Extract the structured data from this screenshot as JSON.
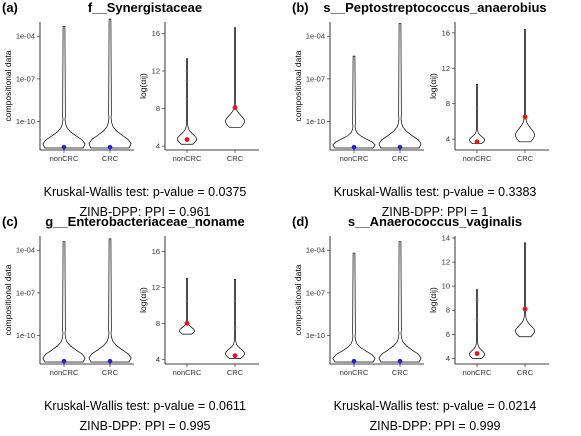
{
  "figure": {
    "categories": [
      "nonCRC",
      "CRC"
    ],
    "left_ylabel": "compositional data",
    "right_ylabel": "log(αij)",
    "point_colors": {
      "compositional": "#1f1fd6",
      "log": "#e8141c"
    }
  },
  "chart_data": [
    {
      "type": "violin",
      "letter": "(a)",
      "title": "f__Synergistaceae",
      "kw_text": "Kruskal-Wallis test: p-value = 0.0375",
      "zinb_text": "ZINB-DPP: PPI = 0.961",
      "left": {
        "ylabel": "compositional data",
        "yscale": "log",
        "yticks": [
          "1e-04",
          "1e-07",
          "1e-10"
        ],
        "tick_values": [
          -4,
          -7,
          -10
        ],
        "ylim": [
          -12,
          -3
        ],
        "medians": [
          -11.8,
          -11.8
        ],
        "violins": [
          {
            "category": "nonCRC",
            "top": -3.3,
            "shape": "bottom-heavy"
          },
          {
            "category": "CRC",
            "top": -2.8,
            "shape": "bottom-heavy"
          }
        ]
      },
      "right": {
        "ylabel": "log(αij)",
        "yticks": [
          "4",
          "8",
          "12",
          "16"
        ],
        "tick_values": [
          4,
          8,
          12,
          16
        ],
        "ylim": [
          3.8,
          17
        ],
        "means": [
          4.7,
          8.1
        ],
        "groups": [
          {
            "category": "nonCRC",
            "min": 4.2,
            "max": 13.3,
            "outliers": [
              11,
              9,
              12
            ]
          },
          {
            "category": "CRC",
            "min": 6,
            "max": 16.6,
            "outliers": []
          }
        ]
      }
    },
    {
      "type": "violin",
      "letter": "(b)",
      "title": "s__Peptostreptococcus_anaerobius",
      "kw_text": "Kruskal-Wallis test: p-value = 0.3383",
      "zinb_text": "ZINB-DPP: PPI = 1",
      "left": {
        "ylabel": "compositional data",
        "yscale": "log",
        "yticks": [
          "1e-04",
          "1e-07",
          "1e-10"
        ],
        "tick_values": [
          -4,
          -7,
          -10
        ],
        "ylim": [
          -12,
          -3
        ],
        "medians": [
          -11.8,
          -11.8
        ],
        "violins": [
          {
            "category": "nonCRC",
            "top": -5.4,
            "shape": "bottom-heavy"
          },
          {
            "category": "CRC",
            "top": -3.1,
            "shape": "bottom-heavy"
          }
        ]
      },
      "right": {
        "ylabel": "log(αij)",
        "yticks": [
          "4",
          "8",
          "12",
          "16"
        ],
        "tick_values": [
          4,
          8,
          12,
          16
        ],
        "ylim": [
          3,
          17
        ],
        "means": [
          3.7,
          6.5
        ],
        "groups": [
          {
            "category": "nonCRC",
            "min": 3.5,
            "max": 10.2,
            "outliers": [
              7.5
            ]
          },
          {
            "category": "CRC",
            "min": 3.7,
            "max": 16.4,
            "outliers": []
          }
        ]
      }
    },
    {
      "type": "violin",
      "letter": "(c)",
      "title": "g__Enterobacteriaceae_noname",
      "kw_text": "Kruskal-Wallis test: p-value = 0.0611",
      "zinb_text": "ZINB-DPP: PPI = 0.995",
      "left": {
        "ylabel": "compositional data",
        "yscale": "log",
        "yticks": [
          "1e-04",
          "1e-07",
          "1e-10"
        ],
        "tick_values": [
          -4,
          -7,
          -10
        ],
        "ylim": [
          -12,
          -3
        ],
        "medians": [
          -11.8,
          -11.8
        ],
        "violins": [
          {
            "category": "nonCRC",
            "top": -3.4,
            "shape": "bottom-heavy"
          },
          {
            "category": "CRC",
            "top": -3.2,
            "shape": "bottom-heavy"
          }
        ]
      },
      "right": {
        "ylabel": "log(αij)",
        "yticks": [
          "4",
          "8",
          "12",
          "16"
        ],
        "tick_values": [
          4,
          8,
          12,
          16
        ],
        "ylim": [
          3.7,
          17.5
        ],
        "means": [
          8,
          4.4
        ],
        "groups": [
          {
            "category": "nonCRC",
            "min": 6.8,
            "max": 13,
            "outliers": [
              10.5
            ]
          },
          {
            "category": "CRC",
            "min": 4.1,
            "max": 12.9,
            "outliers": [
              7.5,
              10.5
            ]
          }
        ]
      }
    },
    {
      "type": "violin",
      "letter": "(d)",
      "title": "s__Anaerococcus_vaginalis",
      "kw_text": "Kruskal-Wallis test: p-value = 0.0214",
      "zinb_text": "ZINB-DPP: PPI = 0.999",
      "left": {
        "ylabel": "compositional data",
        "yscale": "log",
        "yticks": [
          "1e-04",
          "1e-07",
          "1e-10"
        ],
        "tick_values": [
          -4,
          -7,
          -10
        ],
        "ylim": [
          -12,
          -3
        ],
        "medians": [
          -11.8,
          -11.8
        ],
        "violins": [
          {
            "category": "nonCRC",
            "top": -4.2,
            "shape": "bottom-heavy"
          },
          {
            "category": "CRC",
            "top": -3.4,
            "shape": "bottom-heavy"
          }
        ]
      },
      "right": {
        "ylabel": "log(αij)",
        "yticks": [
          "4",
          "6",
          "8",
          "10",
          "12",
          "14"
        ],
        "tick_values": [
          4,
          6,
          8,
          10,
          12,
          14
        ],
        "ylim": [
          3.7,
          14
        ],
        "means": [
          4.4,
          8.1
        ],
        "groups": [
          {
            "category": "nonCRC",
            "min": 4,
            "max": 9.7,
            "outliers": [
              8.8,
              9,
              7.2
            ]
          },
          {
            "category": "CRC",
            "min": 5.8,
            "max": 13.6,
            "outliers": []
          }
        ]
      }
    }
  ]
}
